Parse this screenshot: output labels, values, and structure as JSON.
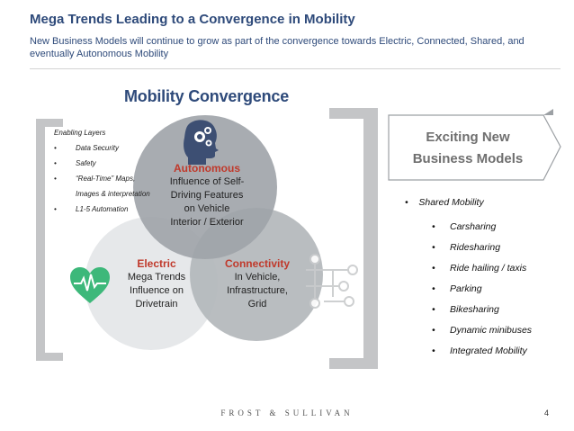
{
  "header": {
    "title": "Mega Trends Leading to a Convergence in Mobility",
    "subtitle": "New Business Models will continue to grow as part of the convergence towards Electric, Connected, Shared, and eventually Autonomous Mobility"
  },
  "diagram": {
    "title": "Mobility Convergence",
    "enabling_layers": {
      "heading": "Enabling Layers",
      "bullet": "•",
      "items": [
        "Data Security",
        "Safety",
        "“Real-Time” Maps,",
        "L1-5 Automation"
      ],
      "continuation": "Images & interpretation"
    },
    "autonomous": {
      "heading": "Autonomous",
      "lines": [
        "Influence of Self-",
        "Driving Features",
        "on Vehicle",
        "Interior / Exterior"
      ]
    },
    "electric": {
      "heading": "Electric",
      "lines": [
        "Mega Trends",
        "Influence on",
        "Drivetrain"
      ]
    },
    "connectivity": {
      "heading": "Connectivity",
      "lines": [
        "In Vehicle,",
        "Infrastructure,",
        "Grid"
      ]
    },
    "colors": {
      "circle_top": "#9ea3a8",
      "circle_left": "#e6e8ea",
      "circle_right": "#b3b7bb",
      "accent_red": "#c0392b",
      "heart_green": "#3db87a",
      "bracket_grey": "#c4c5c7"
    }
  },
  "callout": {
    "lines": [
      "Exciting New",
      "Business Models"
    ]
  },
  "business_models": {
    "bullet": "•",
    "top": "Shared Mobility",
    "items": [
      "Carsharing",
      "Ridesharing",
      "Ride hailing / taxis",
      "Parking",
      "Bikesharing",
      "Dynamic minibuses",
      "Integrated Mobility"
    ]
  },
  "footer": {
    "logo": "FROST & SULLIVAN",
    "page": "4"
  }
}
